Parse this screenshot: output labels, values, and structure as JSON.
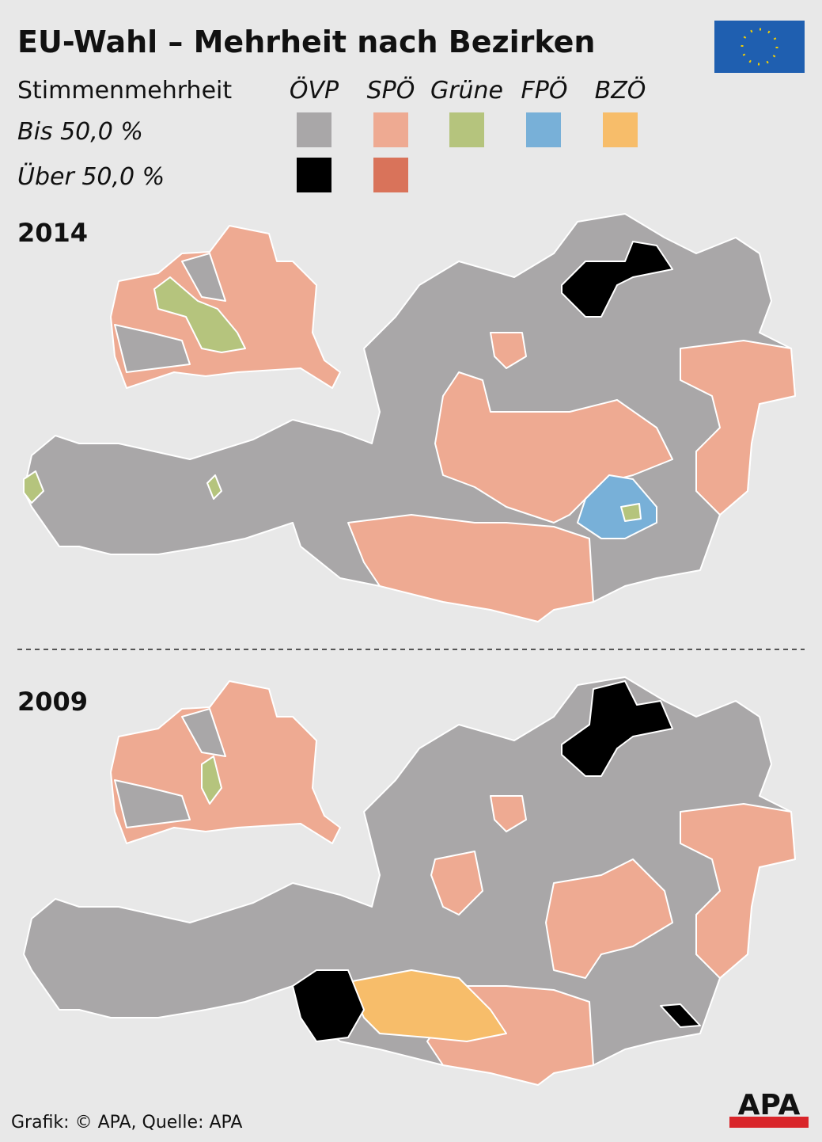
{
  "header": {
    "title": "EU-Wahl – Mehrheit nach Bezirken"
  },
  "legend": {
    "heading": "Stimmenmehrheit",
    "parties": [
      "ÖVP",
      "SPÖ",
      "Grüne",
      "FPÖ",
      "BZÖ"
    ],
    "rows": [
      "Bis 50,0 %",
      "Über 50,0 %"
    ]
  },
  "maps": [
    {
      "year": "2014"
    },
    {
      "year": "2009"
    }
  ],
  "footer": {
    "source": "Grafik: © APA, Quelle: APA",
    "logo": "APA"
  }
}
